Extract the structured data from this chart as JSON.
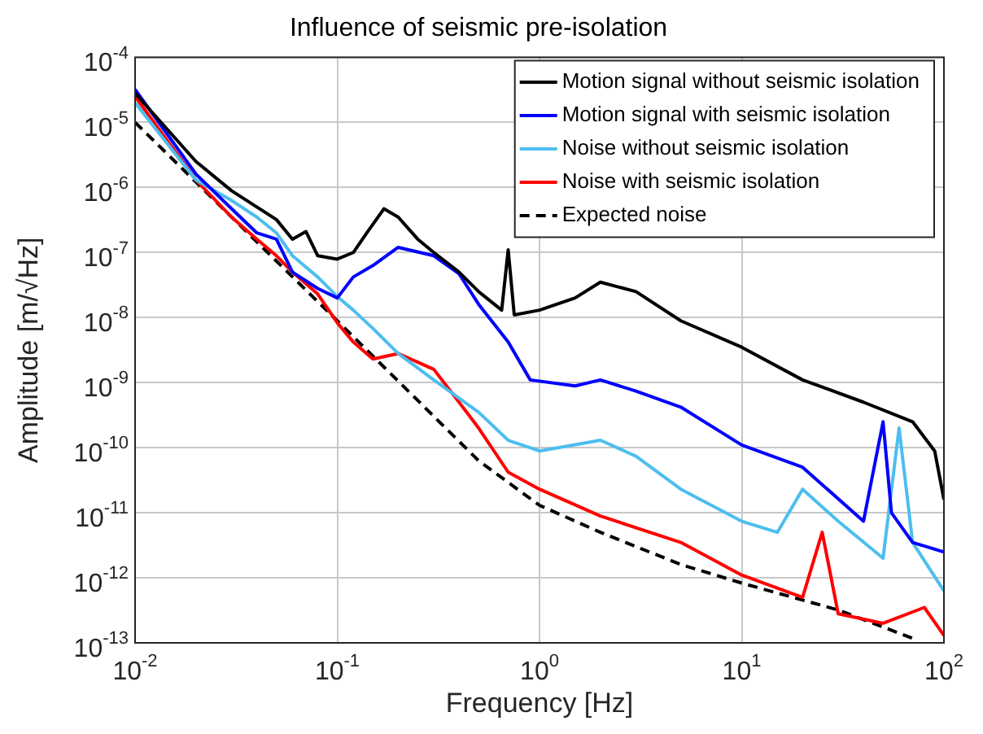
{
  "chart_data": {
    "type": "line",
    "title": "Influence of seismic pre-isolation",
    "xlabel": "Frequency [Hz]",
    "ylabel": "Amplitude [m/√Hz]",
    "log": "xy",
    "grid": true,
    "legend": "top right",
    "xlim": [
      0.01,
      100
    ],
    "ylim": [
      1e-13,
      0.0001
    ],
    "xticks": [
      {
        "value": 0.01,
        "label": "10$^{-2}$"
      },
      {
        "value": 0.1,
        "label": "10$^{-1}$"
      },
      {
        "value": 1,
        "label": "10$^{0}$"
      },
      {
        "value": 10,
        "label": "10$^{1}$"
      },
      {
        "value": 100,
        "label": "10$^{2}$"
      }
    ],
    "yticks": [
      {
        "value": 1e-13,
        "label": "10$^{-13}$"
      },
      {
        "value": 1e-12,
        "label": "10$^{-12}$"
      },
      {
        "value": 1e-11,
        "label": "10$^{-11}$"
      },
      {
        "value": 1e-10,
        "label": "10$^{-10}$"
      },
      {
        "value": 1e-09,
        "label": "10$^{-9}$"
      },
      {
        "value": 1e-08,
        "label": "10$^{-8}$"
      },
      {
        "value": 1e-07,
        "label": "10$^{-7}$"
      },
      {
        "value": 1e-06,
        "label": "10$^{-6}$"
      },
      {
        "value": 1e-05,
        "label": "10$^{-5}$"
      },
      {
        "value": 0.0001,
        "label": "10$^{-4}$"
      }
    ],
    "series": [
      {
        "name": "Motion signal without seismic isolation",
        "color": "#000000",
        "x": [
          0.01,
          0.02,
          0.03,
          0.04,
          0.05,
          0.06,
          0.07,
          0.08,
          0.1,
          0.12,
          0.14,
          0.17,
          0.2,
          0.25,
          0.3,
          0.4,
          0.5,
          0.65,
          0.7,
          0.75,
          1,
          1.5,
          2,
          3,
          5,
          10,
          20,
          40,
          70,
          90,
          100
        ],
        "values": [
          2.8e-05,
          2.5e-06,
          8.9e-07,
          5e-07,
          3.2e-07,
          1.6e-07,
          2.1e-07,
          8.9e-08,
          7.9e-08,
          1e-07,
          2e-07,
          4.7e-07,
          3.5e-07,
          1.6e-07,
          1e-07,
          5e-08,
          2.5e-08,
          1.3e-08,
          1.1e-07,
          1.1e-08,
          1.3e-08,
          2e-08,
          3.5e-08,
          2.5e-08,
          8.9e-09,
          3.5e-09,
          1.1e-09,
          5e-10,
          2.5e-10,
          8.9e-11,
          1.6e-11
        ]
      },
      {
        "name": "Motion signal with seismic isolation",
        "color": "#0000ff",
        "x": [
          0.01,
          0.02,
          0.03,
          0.04,
          0.05,
          0.06,
          0.08,
          0.1,
          0.12,
          0.15,
          0.2,
          0.3,
          0.4,
          0.5,
          0.7,
          0.9,
          1.5,
          2,
          3,
          5,
          10,
          20,
          40,
          50,
          55,
          70,
          100
        ],
        "values": [
          3.2e-05,
          1.6e-06,
          4.7e-07,
          2e-07,
          1.6e-07,
          5e-08,
          2.8e-08,
          2e-08,
          4.2e-08,
          6.3e-08,
          1.2e-07,
          8.9e-08,
          4.7e-08,
          1.6e-08,
          4.2e-09,
          1.1e-09,
          8.9e-10,
          1.1e-09,
          7.4e-10,
          4.2e-10,
          1.1e-10,
          5e-11,
          7.4e-12,
          2.5e-10,
          1e-11,
          3.5e-12,
          2.5e-12
        ]
      },
      {
        "name": "Noise without seismic isolation",
        "color": "#4dbeee",
        "x": [
          0.01,
          0.02,
          0.03,
          0.04,
          0.05,
          0.06,
          0.08,
          0.1,
          0.12,
          0.15,
          0.2,
          0.3,
          0.5,
          0.7,
          1,
          2,
          3,
          5,
          10,
          15,
          20,
          30,
          50,
          60,
          70,
          100
        ],
        "values": [
          2e-05,
          1.3e-06,
          6.3e-07,
          3.5e-07,
          2e-07,
          8.9e-08,
          4.2e-08,
          2.1e-08,
          1.3e-08,
          6.8e-09,
          2.8e-09,
          1.1e-09,
          3.5e-10,
          1.3e-10,
          8.9e-11,
          1.3e-10,
          7.4e-11,
          2.3e-11,
          7.4e-12,
          5e-12,
          2.3e-11,
          7.4e-12,
          2e-12,
          2e-10,
          3.5e-12,
          6.3e-13
        ]
      },
      {
        "name": "Noise with seismic isolation",
        "color": "#ff0000",
        "x": [
          0.01,
          0.02,
          0.03,
          0.04,
          0.05,
          0.06,
          0.08,
          0.1,
          0.12,
          0.15,
          0.2,
          0.3,
          0.4,
          0.5,
          0.7,
          1,
          2,
          5,
          10,
          20,
          25,
          30,
          50,
          80,
          100
        ],
        "values": [
          2.5e-05,
          1.3e-06,
          3.5e-07,
          1.6e-07,
          8.9e-08,
          5e-08,
          2.3e-08,
          8.3e-09,
          4.2e-09,
          2.3e-09,
          2.8e-09,
          1.6e-09,
          5e-10,
          2e-10,
          4.2e-11,
          2.3e-11,
          8.9e-12,
          3.5e-12,
          1.1e-12,
          5e-13,
          5e-12,
          2.8e-13,
          2e-13,
          3.5e-13,
          1.3e-13
        ]
      },
      {
        "name": "Expected noise",
        "color": "#000000",
        "line_style": "dashed",
        "x": [
          0.01,
          0.1,
          0.5,
          1,
          2,
          5,
          10,
          30,
          74
        ],
        "values": [
          1e-05,
          8.9e-09,
          6.3e-11,
          1.3e-11,
          5e-12,
          1.6e-12,
          8.3e-13,
          3.2e-13,
          1.1e-13
        ]
      }
    ]
  }
}
